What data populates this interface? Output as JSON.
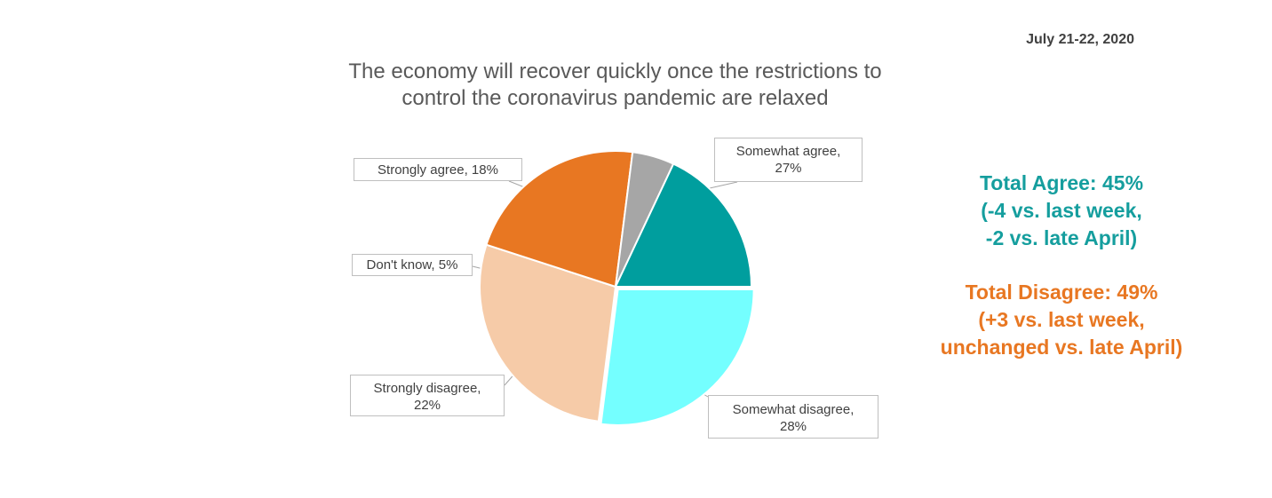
{
  "date": "July 21-22, 2020",
  "chart_data": {
    "type": "pie",
    "title_lines": [
      "The economy will recover quickly once the restrictions to",
      "control the coronavirus pandemic are relaxed"
    ],
    "slices": [
      {
        "label": "Somewhat agree",
        "value": 27,
        "color": "#74FFFF",
        "callout_lines": [
          "Somewhat agree,",
          "27%"
        ]
      },
      {
        "label": "Somewhat disagree",
        "value": 28,
        "color": "#F6CBA8",
        "callout_lines": [
          "Somewhat disagree,",
          "28%"
        ]
      },
      {
        "label": "Strongly disagree",
        "value": 22,
        "color": "#E87722",
        "callout_lines": [
          "Strongly disagree,",
          "22%"
        ]
      },
      {
        "label": "Don't know",
        "value": 5,
        "color": "#A6A6A6",
        "callout_lines": [
          "Don't know, 5%"
        ]
      },
      {
        "label": "Strongly agree",
        "value": 18,
        "color": "#009E9E",
        "callout_lines": [
          "Strongly agree, 18%"
        ]
      }
    ]
  },
  "summary": {
    "agree": {
      "color": "#159E9E",
      "lines": [
        "Total Agree:  45%",
        "(-4 vs. last week,",
        "-2 vs. late April)"
      ]
    },
    "disagree": {
      "color": "#E87722",
      "lines": [
        "Total Disagree: 49%",
        "(+3 vs. last week,",
        "unchanged vs. late April)"
      ]
    }
  }
}
